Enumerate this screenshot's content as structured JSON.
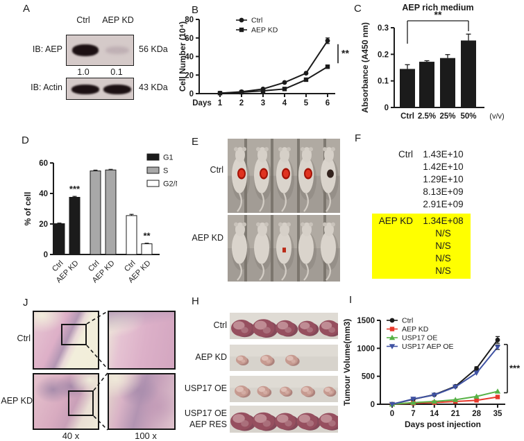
{
  "panels": {
    "A": {
      "letter": "A",
      "lanes": [
        "Ctrl",
        "AEP KD"
      ],
      "blots": [
        {
          "label": "IB: AEP",
          "mw": "56 KDa"
        },
        {
          "label": "IB: Actin",
          "mw": "43 KDa"
        }
      ],
      "quantification": [
        "1.0",
        "0.1"
      ]
    },
    "B": {
      "letter": "B",
      "chart_data": {
        "type": "line",
        "x": [
          1,
          2,
          3,
          4,
          5,
          6
        ],
        "xlabel": "Days",
        "ylabel": "Cell Number (10⁴)",
        "ylim": [
          0,
          80
        ],
        "yticks": [
          0,
          20,
          40,
          60,
          80
        ],
        "legend_position": "top-left-inside",
        "series": [
          {
            "name": "Ctrl",
            "marker": "circle",
            "color": "#1b1b1b",
            "values": [
              0.5,
              2,
              5,
              12,
              22,
              57
            ],
            "errors": [
              0,
              0,
              0,
              0,
              0,
              3
            ]
          },
          {
            "name": "AEP KD",
            "marker": "square",
            "color": "#1b1b1b",
            "values": [
              0.5,
              1.5,
              3,
              5,
              15,
              29
            ],
            "errors": [
              0,
              0,
              0,
              0,
              0,
              1
            ]
          }
        ],
        "significance": {
          "label": "**",
          "type": "vline"
        }
      }
    },
    "C": {
      "letter": "C",
      "chart_data": {
        "type": "bar",
        "title": "AEP rich medium",
        "categories": [
          "Ctrl",
          "2.5%",
          "25%",
          "50%"
        ],
        "values": [
          0.145,
          0.172,
          0.186,
          0.252
        ],
        "errors": [
          0.016,
          0.004,
          0.013,
          0.024
        ],
        "bar_color": "#1b1b1b",
        "xlabel_suffix": "(v/v)",
        "ylabel": "Absorbance (A450 nm)",
        "ylim": [
          0,
          0.3
        ],
        "yticks": [
          0,
          0.1,
          0.2,
          0.3
        ],
        "significance": {
          "label": "**",
          "from": "Ctrl",
          "to": "50%"
        }
      }
    },
    "D": {
      "letter": "D",
      "chart_data": {
        "type": "grouped_bar",
        "ylabel": "% of cell",
        "ylim": [
          0,
          60
        ],
        "yticks": [
          0,
          20,
          40,
          60
        ],
        "categories": [
          "Ctrl",
          "AEP KD"
        ],
        "legend_position": "top-right",
        "series": [
          {
            "name": "G1",
            "color": "#1b1b1b",
            "values": [
              20.2,
              37.5
            ],
            "errors": [
              0.4,
              0.6
            ],
            "sig": [
              "",
              "***"
            ]
          },
          {
            "name": "S",
            "color": "#a8a8a8",
            "values": [
              54.8,
              55.4
            ],
            "errors": [
              0.5,
              0.4
            ],
            "sig": [
              "",
              ""
            ]
          },
          {
            "name": "G2/M",
            "color": "#ffffff",
            "values": [
              25.5,
              7.0
            ],
            "errors": [
              0.8,
              0.4
            ],
            "sig": [
              "",
              "**"
            ]
          }
        ]
      }
    },
    "E": {
      "letter": "E",
      "rows": [
        {
          "label": "Ctrl",
          "mice": 5,
          "signals": [
            "red",
            "red",
            "red",
            "red",
            "dark"
          ]
        },
        {
          "label": "AEP KD",
          "mice": 5,
          "signals": [
            "none",
            "none",
            "small-red",
            "none",
            "none"
          ]
        }
      ]
    },
    "F": {
      "letter": "F",
      "highlight_color": "#ffff00",
      "groups": [
        {
          "label": "Ctrl",
          "highlight": false,
          "values": [
            "1.43E+10",
            "1.42E+10",
            "1.29E+10",
            "8.13E+09",
            "2.91E+09"
          ]
        },
        {
          "label": "AEP KD",
          "highlight": true,
          "values": [
            "1.34E+08",
            "N/S",
            "N/S",
            "N/S",
            "N/S"
          ]
        }
      ]
    },
    "J": {
      "letter": "J",
      "rows": [
        {
          "label": "Ctrl"
        },
        {
          "label": "AEP KD"
        }
      ],
      "magnifications": [
        "40 x",
        "100 x"
      ]
    },
    "H": {
      "letter": "H",
      "rows": [
        {
          "label": "Ctrl",
          "label2": "",
          "shade": "dark",
          "spread": "full",
          "sizes": [
            15,
            16,
            14,
            13,
            14
          ]
        },
        {
          "label": "AEP KD",
          "label2": "",
          "shade": "pale",
          "spread": "left",
          "sizes": [
            8,
            9,
            9
          ]
        },
        {
          "label": "USP17 OE",
          "label2": "",
          "shade": "pale",
          "spread": "full",
          "sizes": [
            10,
            9,
            8,
            9,
            8
          ]
        },
        {
          "label": "USP17 OE",
          "label2": "AEP RES",
          "shade": "dark",
          "spread": "full",
          "sizes": [
            16,
            16,
            15,
            15,
            15
          ]
        }
      ]
    },
    "I": {
      "letter": "I",
      "chart_data": {
        "type": "line",
        "x": [
          0,
          7,
          14,
          21,
          28,
          35
        ],
        "xlabel": "Days post injection",
        "ylabel": "Tumour Volume(mm3)",
        "ylim": [
          0,
          1500
        ],
        "yticks": [
          0,
          500,
          1000,
          1500
        ],
        "legend_position": "top-left-inside",
        "series": [
          {
            "name": "Ctrl",
            "marker": "circle",
            "color": "#1b1b1b",
            "values": [
              0,
              90,
              170,
              320,
              640,
              1150
            ],
            "errors": [
              0,
              0,
              0,
              0,
              30,
              60
            ]
          },
          {
            "name": "AEP KD",
            "marker": "square",
            "color": "#e8382b",
            "values": [
              0,
              20,
              30,
              50,
              70,
              130
            ],
            "errors": [
              0,
              0,
              0,
              0,
              0,
              0
            ]
          },
          {
            "name": "USP17 OE",
            "marker": "triangle",
            "color": "#57b246",
            "values": [
              0,
              30,
              50,
              80,
              140,
              230
            ],
            "errors": [
              0,
              0,
              0,
              0,
              0,
              0
            ]
          },
          {
            "name": "USP17 AEP OE",
            "marker": "triangle-down",
            "color": "#4053a3",
            "values": [
              0,
              95,
              165,
              310,
              560,
              1020
            ],
            "errors": [
              0,
              0,
              0,
              0,
              0,
              40
            ]
          }
        ],
        "significance": {
          "label": "***",
          "type": "bracket"
        }
      }
    }
  }
}
